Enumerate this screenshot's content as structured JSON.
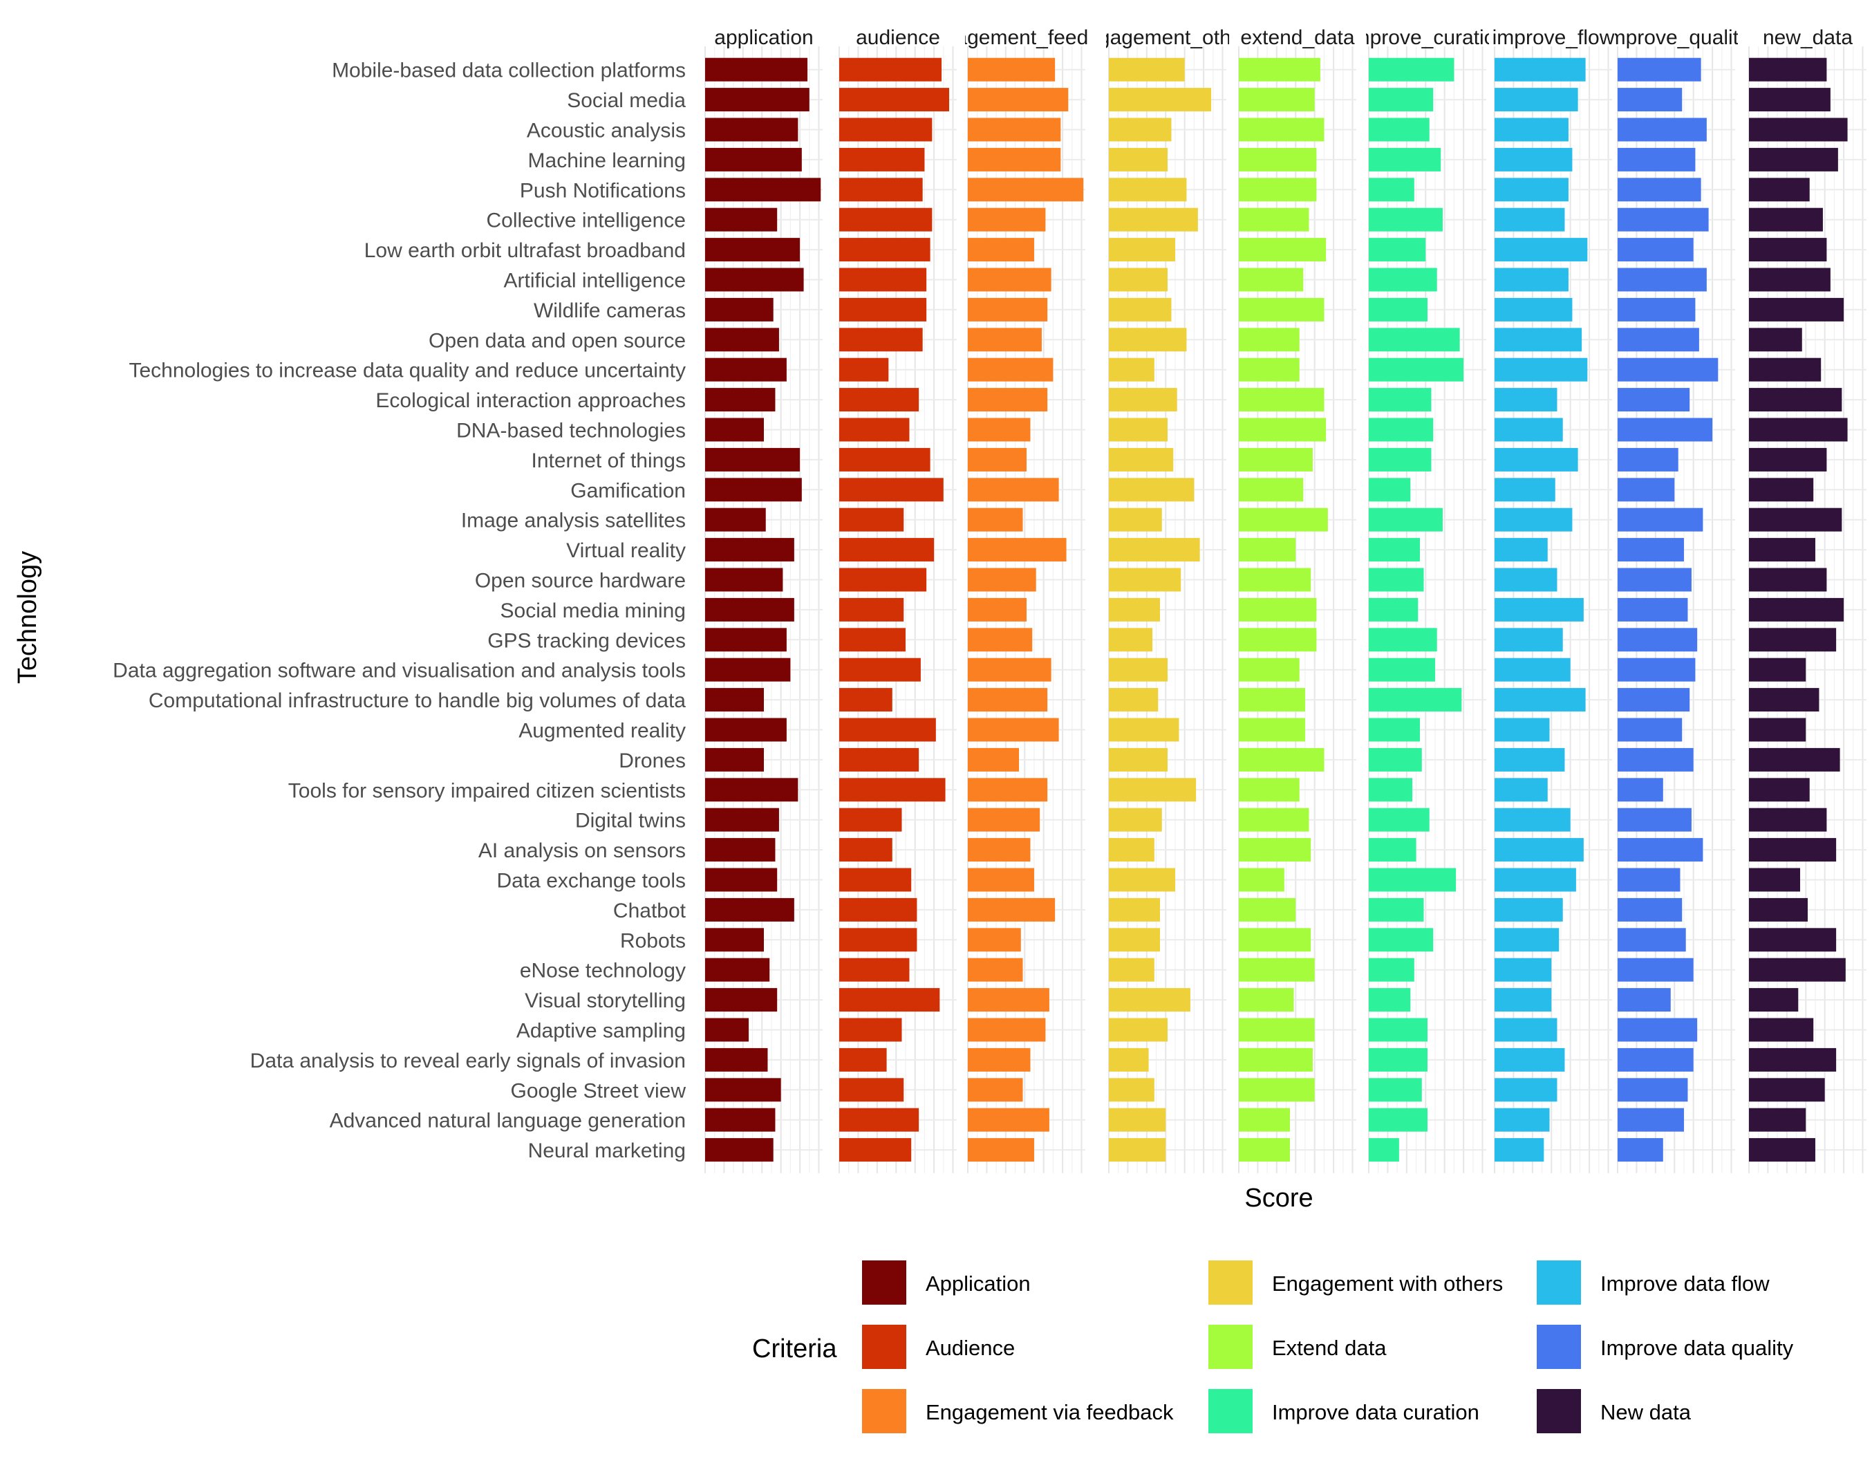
{
  "chart_data": {
    "type": "bar",
    "orientation": "horizontal",
    "faceted": true,
    "xlabel": "Score",
    "ylabel": "Technology",
    "legend_title": "Criteria",
    "legend_position": "bottom",
    "grid": true,
    "categories": [
      "Mobile-based data collection platforms",
      "Social media",
      "Acoustic analysis",
      "Machine learning",
      "Push Notifications",
      "Collective intelligence",
      "Low earth orbit ultrafast broadband",
      "Artificial intelligence",
      "Wildlife cameras",
      "Open data and open source",
      "Technologies to increase data quality and reduce uncertainty",
      "Ecological interaction approaches",
      "DNA-based technologies",
      "Internet of things",
      "Gamification",
      "Image analysis satellites",
      "Virtual reality",
      "Open source hardware",
      "Social media mining",
      "GPS tracking devices",
      "Data aggregation software and visualisation and analysis tools",
      "Computational infrastructure to handle big volumes of data",
      "Augmented reality",
      "Drones",
      "Tools for sensory impaired citizen scientists",
      "Digital twins",
      "AI analysis on sensors",
      "Data exchange tools",
      "Chatbot",
      "Robots",
      "eNose technology",
      "Visual storytelling",
      "Adaptive sampling",
      "Data analysis to reveal early signals of invasion",
      "Google Street view",
      "Advanced natural language generation",
      "Neural marketing"
    ],
    "series": [
      {
        "facet": "application",
        "name": "Application",
        "color": "#7a0403",
        "values": [
          5.4,
          5.5,
          4.9,
          5.1,
          6.1,
          3.8,
          5.0,
          5.2,
          3.6,
          3.9,
          4.3,
          3.7,
          3.1,
          5.0,
          5.1,
          3.2,
          4.7,
          4.1,
          4.7,
          4.3,
          4.5,
          3.1,
          4.3,
          3.1,
          4.9,
          3.9,
          3.7,
          3.8,
          4.7,
          3.1,
          3.4,
          3.8,
          2.3,
          3.3,
          4.0,
          3.7,
          3.6
        ]
      },
      {
        "facet": "audience",
        "name": "Audience",
        "color": "#d23105",
        "values": [
          5.4,
          5.8,
          4.9,
          4.5,
          4.4,
          4.9,
          4.8,
          4.6,
          4.6,
          4.4,
          2.6,
          4.2,
          3.7,
          4.8,
          5.5,
          3.4,
          5.0,
          4.6,
          3.4,
          3.5,
          4.3,
          2.8,
          5.1,
          4.2,
          5.6,
          3.3,
          2.8,
          3.8,
          4.1,
          4.1,
          3.7,
          5.3,
          3.3,
          2.5,
          3.4,
          4.2,
          3.8
        ]
      },
      {
        "facet": "engagement_feedback",
        "name": "Engagement via feedback",
        "color": "#fb8022",
        "values": [
          4.6,
          5.3,
          4.9,
          4.9,
          6.1,
          4.1,
          3.5,
          4.4,
          4.2,
          3.9,
          4.5,
          4.2,
          3.3,
          3.1,
          4.8,
          2.9,
          5.2,
          3.6,
          3.1,
          3.4,
          4.4,
          4.2,
          4.8,
          2.7,
          4.2,
          3.8,
          3.3,
          3.5,
          4.6,
          2.8,
          2.9,
          4.3,
          4.1,
          3.3,
          2.9,
          4.3,
          3.5
        ]
      },
      {
        "facet": "engagement_others",
        "name": "Engagement with others",
        "color": "#edd03a",
        "values": [
          4.0,
          5.4,
          3.3,
          3.1,
          4.1,
          4.7,
          3.5,
          3.1,
          3.3,
          4.1,
          2.4,
          3.6,
          3.1,
          3.4,
          4.5,
          2.8,
          4.8,
          3.8,
          2.7,
          2.3,
          3.1,
          2.6,
          3.7,
          3.1,
          4.6,
          2.8,
          2.4,
          3.5,
          2.7,
          2.7,
          2.4,
          4.3,
          3.1,
          2.1,
          2.4,
          3.0,
          3.0
        ]
      },
      {
        "facet": "extend_data",
        "name": "Extend data",
        "color": "#a4fc3c",
        "values": [
          4.3,
          4.0,
          4.5,
          4.1,
          4.1,
          3.7,
          4.6,
          3.4,
          4.5,
          3.2,
          3.2,
          4.5,
          4.6,
          3.9,
          3.4,
          4.7,
          3.0,
          3.8,
          4.1,
          4.1,
          3.2,
          3.5,
          3.5,
          4.5,
          3.2,
          3.7,
          3.8,
          2.4,
          3.0,
          3.8,
          4.0,
          2.9,
          4.0,
          3.9,
          4.0,
          2.7,
          2.7
        ]
      },
      {
        "facet": "improve_curation",
        "name": "Improve data curation",
        "color": "#2ef19c",
        "values": [
          4.5,
          3.4,
          3.2,
          3.8,
          2.4,
          3.9,
          3.0,
          3.6,
          3.1,
          4.8,
          5.0,
          3.3,
          3.4,
          3.3,
          2.2,
          3.9,
          2.7,
          2.9,
          2.6,
          3.6,
          3.5,
          4.9,
          2.7,
          2.8,
          2.3,
          3.2,
          2.5,
          4.6,
          2.9,
          3.4,
          2.4,
          2.2,
          3.1,
          3.1,
          2.8,
          3.1,
          1.6
        ]
      },
      {
        "facet": "improve_flow",
        "name": "Improve data flow",
        "color": "#28bceb",
        "values": [
          4.8,
          4.4,
          3.9,
          4.1,
          3.9,
          3.7,
          4.9,
          3.9,
          4.1,
          4.6,
          4.9,
          3.3,
          3.6,
          4.4,
          3.2,
          4.1,
          2.8,
          3.3,
          4.7,
          3.6,
          4.0,
          4.8,
          2.9,
          3.7,
          2.8,
          4.0,
          4.7,
          4.3,
          3.6,
          3.4,
          3.0,
          3.0,
          3.3,
          3.7,
          3.3,
          2.9,
          2.6
        ]
      },
      {
        "facet": "improve_quality",
        "name": "Improve data quality",
        "color": "#4777ef",
        "values": [
          4.4,
          3.4,
          4.7,
          4.1,
          4.4,
          4.8,
          4.0,
          4.7,
          4.1,
          4.3,
          5.3,
          3.8,
          5.0,
          3.2,
          3.0,
          4.5,
          3.5,
          3.9,
          3.7,
          4.2,
          4.1,
          3.8,
          3.4,
          4.0,
          2.4,
          3.9,
          4.5,
          3.3,
          3.4,
          3.6,
          4.0,
          2.8,
          4.2,
          4.0,
          3.7,
          3.5,
          2.4
        ]
      },
      {
        "facet": "new_data",
        "name": "New data",
        "color": "#30123b",
        "values": [
          4.1,
          4.3,
          5.2,
          4.7,
          3.2,
          3.9,
          4.1,
          4.3,
          5.0,
          2.8,
          3.8,
          4.9,
          5.2,
          4.1,
          3.4,
          4.9,
          3.5,
          4.1,
          5.0,
          4.6,
          3.0,
          3.7,
          3.0,
          4.8,
          3.2,
          4.1,
          4.6,
          2.7,
          3.1,
          4.6,
          5.1,
          2.6,
          3.4,
          4.6,
          4.0,
          3.0,
          3.5
        ]
      }
    ],
    "xlim": [
      0,
      6.2
    ]
  }
}
